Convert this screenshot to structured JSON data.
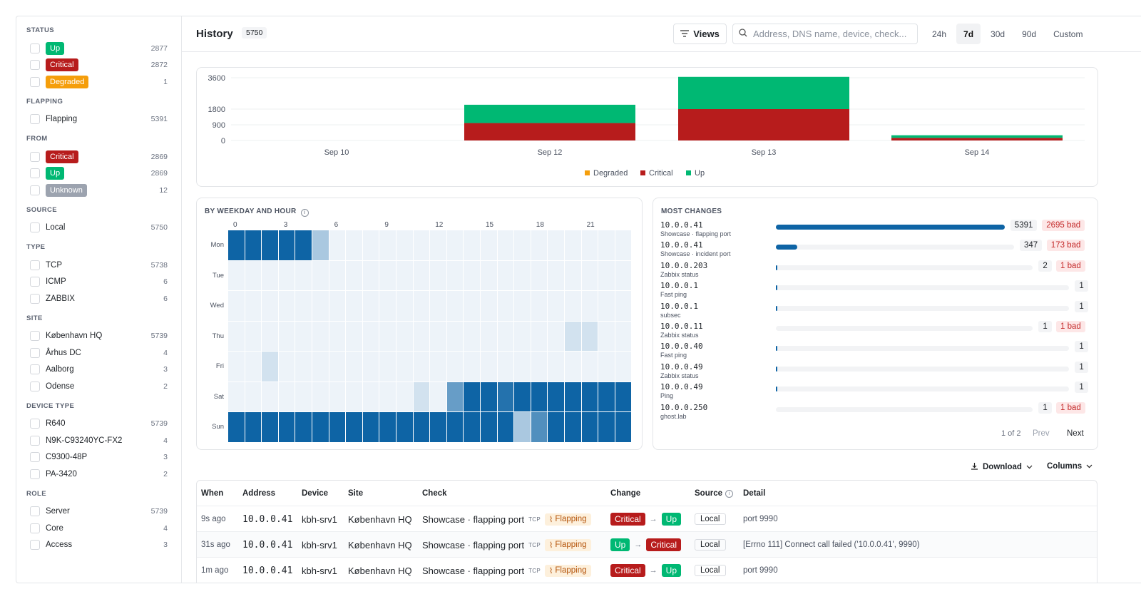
{
  "sidebar": {
    "sections": [
      {
        "title": "STATUS",
        "items": [
          {
            "label": "Up",
            "count": "2877",
            "badge": "up"
          },
          {
            "label": "Critical",
            "count": "2872",
            "badge": "crit"
          },
          {
            "label": "Degraded",
            "count": "1",
            "badge": "deg"
          }
        ]
      },
      {
        "title": "FLAPPING",
        "items": [
          {
            "label": "Flapping",
            "count": "5391"
          }
        ]
      },
      {
        "title": "FROM",
        "items": [
          {
            "label": "Critical",
            "count": "2869",
            "badge": "crit"
          },
          {
            "label": "Up",
            "count": "2869",
            "badge": "up"
          },
          {
            "label": "Unknown",
            "count": "12",
            "badge": "unk"
          }
        ]
      },
      {
        "title": "SOURCE",
        "items": [
          {
            "label": "Local",
            "count": "5750"
          }
        ]
      },
      {
        "title": "TYPE",
        "items": [
          {
            "label": "TCP",
            "count": "5738"
          },
          {
            "label": "ICMP",
            "count": "6"
          },
          {
            "label": "ZABBIX",
            "count": "6"
          }
        ]
      },
      {
        "title": "SITE",
        "items": [
          {
            "label": "København HQ",
            "count": "5739"
          },
          {
            "label": "Århus DC",
            "count": "4"
          },
          {
            "label": "Aalborg",
            "count": "3"
          },
          {
            "label": "Odense",
            "count": "2"
          }
        ]
      },
      {
        "title": "DEVICE TYPE",
        "items": [
          {
            "label": "R640",
            "count": "5739"
          },
          {
            "label": "N9K-C93240YC-FX2",
            "count": "4"
          },
          {
            "label": "C9300-48P",
            "count": "3"
          },
          {
            "label": "PA-3420",
            "count": "2"
          }
        ]
      },
      {
        "title": "ROLE",
        "items": [
          {
            "label": "Server",
            "count": "5739"
          },
          {
            "label": "Core",
            "count": "4"
          },
          {
            "label": "Access",
            "count": "3"
          }
        ]
      }
    ]
  },
  "header": {
    "title": "History",
    "count": "5750",
    "views_label": "Views",
    "search_placeholder": "Address, DNS name, device, check...",
    "ranges": [
      "24h",
      "7d",
      "30d",
      "90d",
      "Custom"
    ],
    "active_range": "7d"
  },
  "colors": {
    "up": "#00b873",
    "critical": "#b71c1c",
    "degraded": "#f59e0b",
    "unknown": "#9ca3af",
    "heat": "#0e64a5"
  },
  "chart_data": {
    "type": "bar",
    "stacked": true,
    "categories": [
      "Sep 10",
      "Sep 12",
      "Sep 13",
      "Sep 14"
    ],
    "yticks": [
      0,
      900,
      1800,
      3600
    ],
    "ylim": [
      0,
      3600
    ],
    "series": [
      {
        "name": "Degraded",
        "color": "#f59e0b",
        "values": [
          0,
          0,
          0,
          0
        ]
      },
      {
        "name": "Critical",
        "color": "#b71c1c",
        "values": [
          0,
          1000,
          1800,
          150
        ]
      },
      {
        "name": "Up",
        "color": "#00b873",
        "values": [
          0,
          1050,
          1850,
          150
        ]
      }
    ],
    "legend": [
      "Degraded",
      "Critical",
      "Up"
    ]
  },
  "heatmap": {
    "title": "BY WEEKDAY AND HOUR",
    "rows": [
      "Mon",
      "Tue",
      "Wed",
      "Thu",
      "Fri",
      "Sat",
      "Sun"
    ],
    "col_labels": [
      "0",
      "3",
      "6",
      "9",
      "12",
      "15",
      "18",
      "21"
    ],
    "intensity": [
      [
        1,
        1,
        1,
        1,
        1,
        0.3,
        0.04,
        0.04,
        0.04,
        0.04,
        0.04,
        0.04,
        0.04,
        0.04,
        0.04,
        0.04,
        0.04,
        0.04,
        0.04,
        0.04,
        0.04,
        0.04,
        0.04,
        0.04
      ],
      [
        0.04,
        0.04,
        0.04,
        0.04,
        0.04,
        0.04,
        0.04,
        0.04,
        0.04,
        0.04,
        0.04,
        0.04,
        0.04,
        0.04,
        0.04,
        0.04,
        0.04,
        0.04,
        0.04,
        0.04,
        0.04,
        0.04,
        0.04,
        0.04
      ],
      [
        0.04,
        0.04,
        0.04,
        0.04,
        0.04,
        0.04,
        0.04,
        0.04,
        0.04,
        0.04,
        0.04,
        0.04,
        0.04,
        0.04,
        0.04,
        0.04,
        0.04,
        0.04,
        0.04,
        0.04,
        0.04,
        0.04,
        0.04,
        0.04
      ],
      [
        0.04,
        0.04,
        0.04,
        0.04,
        0.04,
        0.04,
        0.04,
        0.04,
        0.04,
        0.04,
        0.04,
        0.04,
        0.04,
        0.04,
        0.04,
        0.04,
        0.04,
        0.04,
        0.04,
        0.04,
        0.12,
        0.12,
        0.04,
        0.04
      ],
      [
        0.04,
        0.04,
        0.12,
        0.04,
        0.04,
        0.04,
        0.04,
        0.04,
        0.04,
        0.04,
        0.04,
        0.04,
        0.04,
        0.04,
        0.04,
        0.04,
        0.04,
        0.04,
        0.04,
        0.04,
        0.04,
        0.04,
        0.04,
        0.04
      ],
      [
        0.04,
        0.04,
        0.04,
        0.04,
        0.04,
        0.04,
        0.04,
        0.04,
        0.04,
        0.04,
        0.04,
        0.12,
        0.04,
        0.6,
        1,
        1,
        0.9,
        1,
        1,
        1,
        1,
        1,
        1,
        1
      ],
      [
        1,
        1,
        1,
        1,
        1,
        1,
        1,
        1,
        1,
        1,
        1,
        1,
        1,
        1,
        1,
        1,
        1,
        0.3,
        0.7,
        1,
        1,
        1,
        1,
        1
      ]
    ]
  },
  "most_changes": {
    "title": "MOST CHANGES",
    "rows": [
      {
        "address": "10.0.0.41",
        "sub": "Showcase · flapping port",
        "count": "5391",
        "bad": "2695 bad",
        "fraction": 1.0
      },
      {
        "address": "10.0.0.41",
        "sub": "Showcase · incident port",
        "count": "347",
        "bad": "173 bad",
        "fraction": 0.064
      },
      {
        "address": "10.0.0.203",
        "sub": "Zabbix status",
        "count": "2",
        "bad": "1 bad",
        "fraction": 0.002
      },
      {
        "address": "10.0.0.1",
        "sub": "Fast ping",
        "count": "1",
        "bad": "",
        "fraction": 0.002
      },
      {
        "address": "10.0.0.1",
        "sub": "subsec",
        "count": "1",
        "bad": "",
        "fraction": 0.002
      },
      {
        "address": "10.0.0.11",
        "sub": "Zabbix status",
        "count": "1",
        "bad": "1 bad",
        "fraction": 0.0
      },
      {
        "address": "10.0.0.40",
        "sub": "Fast ping",
        "count": "1",
        "bad": "",
        "fraction": 0.002
      },
      {
        "address": "10.0.0.49",
        "sub": "Zabbix status",
        "count": "1",
        "bad": "",
        "fraction": 0.002
      },
      {
        "address": "10.0.0.49",
        "sub": "Ping",
        "count": "1",
        "bad": "",
        "fraction": 0.002
      },
      {
        "address": "10.0.0.250",
        "sub": "ghost.lab",
        "count": "1",
        "bad": "1 bad",
        "fraction": 0.0
      }
    ],
    "pager": "1 of 2",
    "prev": "Prev",
    "next": "Next"
  },
  "toolbar": {
    "download": "Download",
    "columns": "Columns"
  },
  "table": {
    "headers": [
      "When",
      "Address",
      "Device",
      "Site",
      "Check",
      "Change",
      "Source",
      "Detail"
    ],
    "rows": [
      {
        "when": "9s ago",
        "address": "10.0.0.41",
        "device": "kbh-srv1",
        "site": "København HQ",
        "check": "Showcase · flapping port",
        "proto": "TCP",
        "flap": "Flapping",
        "from": "Critical",
        "to": "Up",
        "source": "Local",
        "detail": "port 9990"
      },
      {
        "when": "31s ago",
        "address": "10.0.0.41",
        "device": "kbh-srv1",
        "site": "København HQ",
        "check": "Showcase · flapping port",
        "proto": "TCP",
        "flap": "Flapping",
        "from": "Up",
        "to": "Critical",
        "source": "Local",
        "detail": "[Errno 111] Connect call failed ('10.0.0.41', 9990)"
      },
      {
        "when": "1m ago",
        "address": "10.0.0.41",
        "device": "kbh-srv1",
        "site": "København HQ",
        "check": "Showcase · flapping port",
        "proto": "TCP",
        "flap": "Flapping",
        "from": "Critical",
        "to": "Up",
        "source": "Local",
        "detail": "port 9990"
      }
    ]
  }
}
